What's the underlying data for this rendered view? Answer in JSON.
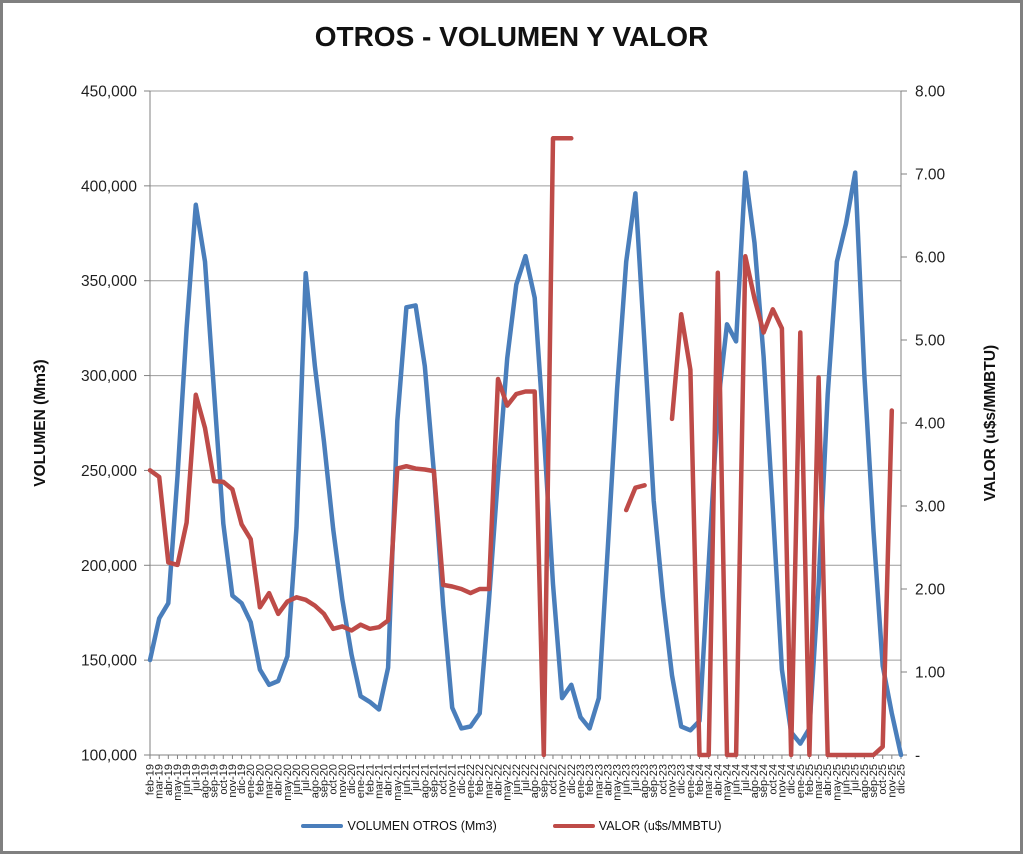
{
  "chart_data": {
    "type": "line",
    "title": "OTROS - VOLUMEN Y VALOR",
    "categories": [
      "feb-19",
      "mar-19",
      "abr-19",
      "may-19",
      "jun-19",
      "jul-19",
      "ago-19",
      "sep-19",
      "oct-19",
      "nov-19",
      "dic-19",
      "ene-20",
      "feb-20",
      "mar-20",
      "abr-20",
      "may-20",
      "jun-20",
      "jul-20",
      "ago-20",
      "sep-20",
      "oct-20",
      "nov-20",
      "dic-20",
      "ene-21",
      "feb-21",
      "mar-21",
      "abr-21",
      "may-21",
      "jun-21",
      "jul-21",
      "ago-21",
      "sep-21",
      "oct-21",
      "nov-21",
      "dic-21",
      "ene-22",
      "feb-22",
      "mar-22",
      "abr-22",
      "may-22",
      "jun-22",
      "jul-22",
      "ago-22",
      "sep-22",
      "oct-22",
      "nov-22",
      "dic-22",
      "ene-23",
      "feb-23",
      "mar-23",
      "abr-23",
      "may-23",
      "jun-23",
      "jul-23",
      "ago-23",
      "sep-23",
      "oct-23",
      "nov-23",
      "dic-23",
      "ene-24",
      "feb-24",
      "mar-24",
      "abr-24",
      "may-24",
      "jun-24",
      "jul-24",
      "ago-24",
      "sep-24",
      "oct-24",
      "nov-24",
      "dic-24",
      "ene-25",
      "feb-25",
      "mar-25",
      "abr-25",
      "may-25",
      "jun-25",
      "jul-25",
      "ago-25",
      "sep-25",
      "oct-25",
      "nov-25",
      "dic-25"
    ],
    "series": [
      {
        "name": "VOLUMEN OTROS (Mm3)",
        "axis": "left",
        "color": "#4A7EBB",
        "values": [
          150000,
          172000,
          180000,
          247000,
          325000,
          390000,
          360000,
          291000,
          222000,
          184000,
          180000,
          170000,
          145000,
          137000,
          139000,
          152000,
          220000,
          354000,
          305000,
          265000,
          219000,
          182000,
          153000,
          131000,
          128000,
          124000,
          146000,
          276000,
          336000,
          337000,
          305000,
          249000,
          179000,
          125000,
          114000,
          115000,
          122000,
          181000,
          247000,
          309000,
          348000,
          363000,
          341000,
          270000,
          190000,
          130000,
          137000,
          120000,
          114000,
          130000,
          210000,
          293000,
          360000,
          396000,
          316000,
          234000,
          183000,
          142000,
          115000,
          113000,
          118000,
          201000,
          284000,
          327000,
          318000,
          407000,
          370000,
          310000,
          230000,
          145000,
          112000,
          106000,
          114000,
          190000,
          290000,
          360000,
          380000,
          407000,
          300000,
          218000,
          147000,
          122000,
          100000
        ]
      },
      {
        "name": "VALOR (u$s/MMBTU)",
        "axis": "right",
        "color": "#BE4B48",
        "values": [
          3.43,
          3.35,
          2.32,
          2.29,
          2.8,
          4.34,
          3.94,
          3.3,
          3.29,
          3.2,
          2.78,
          2.6,
          1.78,
          1.95,
          1.7,
          1.85,
          1.9,
          1.87,
          1.8,
          1.7,
          1.52,
          1.55,
          1.5,
          1.57,
          1.52,
          1.54,
          1.62,
          3.45,
          3.48,
          3.45,
          3.44,
          3.42,
          2.05,
          2.03,
          2.0,
          1.95,
          2.0,
          2.0,
          4.53,
          4.21,
          4.35,
          4.38,
          4.38,
          0.0,
          7.43,
          7.43,
          7.43,
          null,
          null,
          null,
          null,
          null,
          2.95,
          3.22,
          3.25,
          null,
          null,
          4.05,
          5.31,
          4.64,
          0.0,
          0.0,
          5.81,
          0.0,
          0.0,
          6.01,
          5.5,
          5.09,
          5.37,
          5.14,
          0.0,
          5.09,
          0.0,
          4.55,
          0.0,
          0.0,
          0.0,
          0.0,
          0.0,
          0.0,
          0.1,
          4.15,
          null
        ]
      }
    ],
    "left_axis": {
      "label": "VOLUMEN (Mm3)",
      "min": 100000,
      "max": 450000,
      "step": 50000,
      "tick_labels": [
        "450,000",
        "400,000",
        "350,000",
        "300,000",
        "250,000",
        "200,000",
        "150,000",
        "100,000"
      ]
    },
    "right_axis": {
      "label": "VALOR (u$s/MMBTU)",
      "min": 0,
      "max": 8,
      "step": 1,
      "tick_labels": [
        "8.00",
        "7.00",
        "6.00",
        "5.00",
        "4.00",
        "3.00",
        "2.00",
        "1.00",
        "-"
      ]
    },
    "grid": true,
    "legend_position": "bottom",
    "colors": {
      "gridline": "#9C9C9C",
      "axis_line": "#808080",
      "text": "#1F1F1F"
    }
  }
}
